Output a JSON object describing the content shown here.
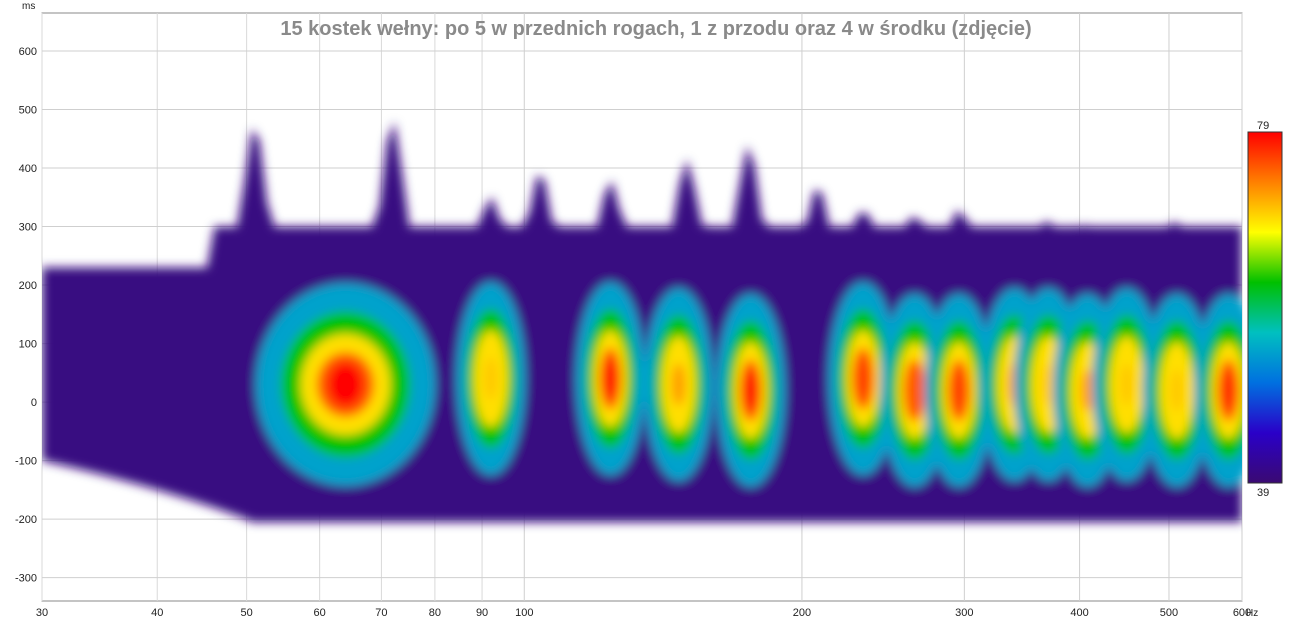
{
  "chart_data": {
    "type": "heatmap",
    "title": "15 kostek wełny: po 5 w przednich rogach, 1 z przodu oraz 4 w środku (zdjęcie)",
    "x_unit": "Hz",
    "y_unit": "ms",
    "x_scale": "log",
    "xlim": [
      30,
      600
    ],
    "ylim": [
      -340,
      665
    ],
    "x_ticks": [
      30,
      40,
      50,
      60,
      70,
      80,
      90,
      100,
      200,
      300,
      400,
      500,
      600
    ],
    "x_tick_labels": [
      "30",
      "40",
      "50",
      "60",
      "70",
      "80",
      "90",
      "100",
      "200",
      "300",
      "400",
      "500",
      "600"
    ],
    "y_ticks": [
      600,
      500,
      400,
      300,
      200,
      100,
      0,
      -100,
      -200,
      -300
    ],
    "y_tick_labels": [
      "600",
      "500",
      "400",
      "300",
      "200",
      "100",
      "0",
      "-100",
      "-200",
      "-300"
    ],
    "grid": true,
    "colorbar": {
      "min": 39,
      "max": 79,
      "min_label": "39",
      "max_label": "79",
      "colors": [
        "#3a0a72",
        "#2a00c8",
        "#0070e0",
        "#00c0c0",
        "#00c000",
        "#ffff00",
        "#ff8000",
        "#ff0000"
      ]
    },
    "peak_tops_ms": [
      {
        "freq": 51,
        "top": 475
      },
      {
        "freq": 72,
        "top": 483
      },
      {
        "freq": 92,
        "top": 352
      },
      {
        "freq": 104,
        "top": 395
      },
      {
        "freq": 124,
        "top": 380
      },
      {
        "freq": 150,
        "top": 415
      },
      {
        "freq": 155,
        "top": 305
      },
      {
        "freq": 175,
        "top": 440
      },
      {
        "freq": 208,
        "top": 370
      },
      {
        "freq": 233,
        "top": 330
      },
      {
        "freq": 265,
        "top": 320
      },
      {
        "freq": 296,
        "top": 330
      },
      {
        "freq": 340,
        "top": 300
      },
      {
        "freq": 370,
        "top": 310
      },
      {
        "freq": 408,
        "top": 305
      },
      {
        "freq": 450,
        "top": 300
      },
      {
        "freq": 510,
        "top": 310
      },
      {
        "freq": 580,
        "top": 290
      }
    ],
    "hot_spots": [
      {
        "freq": 64,
        "time": 30,
        "level": 79
      },
      {
        "freq": 92,
        "time": 40,
        "level": 70
      },
      {
        "freq": 124,
        "time": 40,
        "level": 78
      },
      {
        "freq": 147,
        "time": 30,
        "level": 72
      },
      {
        "freq": 176,
        "time": 20,
        "level": 78
      },
      {
        "freq": 233,
        "time": 40,
        "level": 76
      },
      {
        "freq": 265,
        "time": 20,
        "level": 75
      },
      {
        "freq": 296,
        "time": 20,
        "level": 76
      },
      {
        "freq": 340,
        "time": 30,
        "level": 72
      },
      {
        "freq": 370,
        "time": 30,
        "level": 70
      },
      {
        "freq": 408,
        "time": 20,
        "level": 72
      },
      {
        "freq": 450,
        "time": 30,
        "level": 70
      },
      {
        "freq": 510,
        "time": 20,
        "level": 70
      },
      {
        "freq": 580,
        "time": 20,
        "level": 77
      }
    ]
  }
}
